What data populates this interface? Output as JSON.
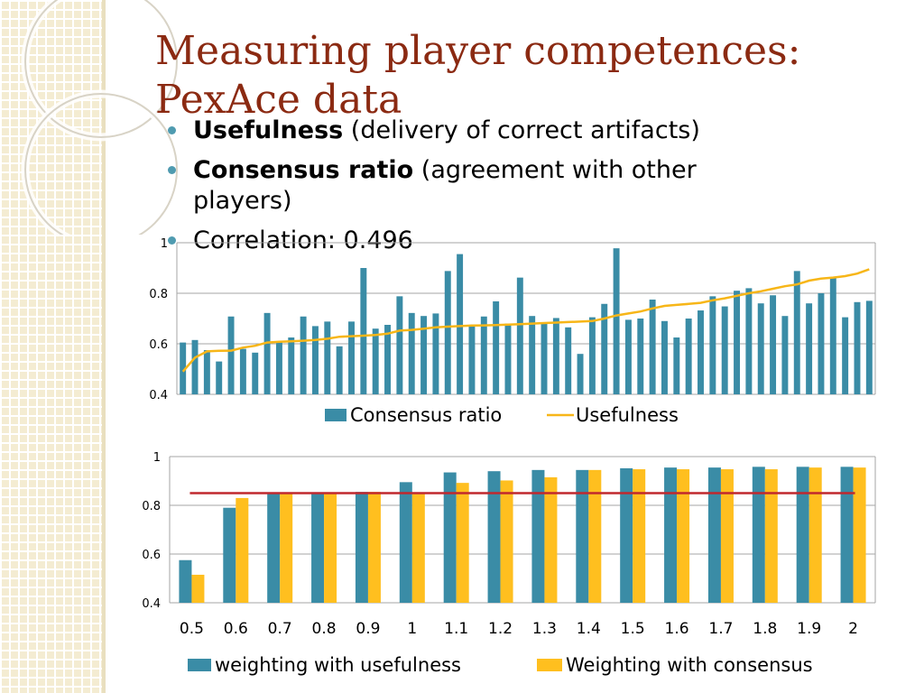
{
  "title": "Measuring player competences: PexAce data",
  "bullets": [
    {
      "bold": "Usefulness",
      "rest": " (delivery of correct artifacts)"
    },
    {
      "bold": "Consensus ratio",
      "rest": " (agreement with other players)"
    },
    {
      "bold": "",
      "rest": "Correlation: 0.496"
    }
  ],
  "colors": {
    "bar": "#3a8ca6",
    "line": "#f7b618",
    "bar2": "#ffbf1f",
    "threshold": "#c0282e",
    "title": "#8b2a12"
  },
  "chart_data": [
    {
      "type": "bar",
      "ylim": [
        0.4,
        1
      ],
      "yticks": [
        "0.4",
        "0.6",
        "0.8",
        "1"
      ],
      "grid": true,
      "legend_position": "bottom",
      "series": [
        {
          "name": "Consensus ratio",
          "type": "bar",
          "values": [
            0.605,
            0.615,
            0.575,
            0.53,
            0.708,
            0.58,
            0.565,
            0.722,
            0.61,
            0.625,
            0.708,
            0.67,
            0.688,
            0.59,
            0.688,
            0.9,
            0.66,
            0.675,
            0.788,
            0.722,
            0.71,
            0.72,
            0.888,
            0.955,
            0.675,
            0.708,
            0.768,
            0.68,
            0.862,
            0.71,
            0.68,
            0.702,
            0.665,
            0.56,
            0.705,
            0.758,
            0.978,
            0.695,
            0.7,
            0.775,
            0.69,
            0.625,
            0.7,
            0.732,
            0.788,
            0.748,
            0.81,
            0.82,
            0.76,
            0.792,
            0.71,
            0.888,
            0.76,
            0.8,
            0.862,
            0.705,
            0.765,
            0.77
          ]
        },
        {
          "name": "Usefulness",
          "type": "line",
          "values": [
            0.49,
            0.545,
            0.57,
            0.572,
            0.573,
            0.585,
            0.592,
            0.605,
            0.608,
            0.61,
            0.612,
            0.615,
            0.62,
            0.628,
            0.63,
            0.632,
            0.635,
            0.64,
            0.652,
            0.655,
            0.66,
            0.665,
            0.668,
            0.67,
            0.672,
            0.673,
            0.674,
            0.676,
            0.678,
            0.68,
            0.682,
            0.684,
            0.686,
            0.688,
            0.69,
            0.7,
            0.712,
            0.72,
            0.728,
            0.74,
            0.75,
            0.754,
            0.758,
            0.762,
            0.772,
            0.78,
            0.79,
            0.8,
            0.808,
            0.818,
            0.828,
            0.835,
            0.85,
            0.858,
            0.862,
            0.868,
            0.878,
            0.895
          ]
        }
      ]
    },
    {
      "type": "bar",
      "ylim": [
        0.4,
        1
      ],
      "yticks": [
        "0.4",
        "0.6",
        "0.8",
        "1"
      ],
      "grid": true,
      "legend_position": "bottom",
      "categories": [
        "0.5",
        "0.6",
        "0.7",
        "0.8",
        "0.9",
        "1",
        "1.1",
        "1.2",
        "1.3",
        "1.4",
        "1.5",
        "1.6",
        "1.7",
        "1.8",
        "1.9",
        "2"
      ],
      "series": [
        {
          "name": "weighting with usefulness",
          "values": [
            0.575,
            0.79,
            0.85,
            0.85,
            0.855,
            0.895,
            0.935,
            0.94,
            0.945,
            0.945,
            0.952,
            0.955,
            0.955,
            0.958,
            0.958,
            0.958
          ]
        },
        {
          "name": "Weighting with consensus",
          "values": [
            0.515,
            0.83,
            0.85,
            0.85,
            0.855,
            0.85,
            0.892,
            0.902,
            0.915,
            0.945,
            0.948,
            0.948,
            0.948,
            0.948,
            0.955,
            0.955
          ]
        }
      ],
      "threshold": 0.85
    }
  ]
}
